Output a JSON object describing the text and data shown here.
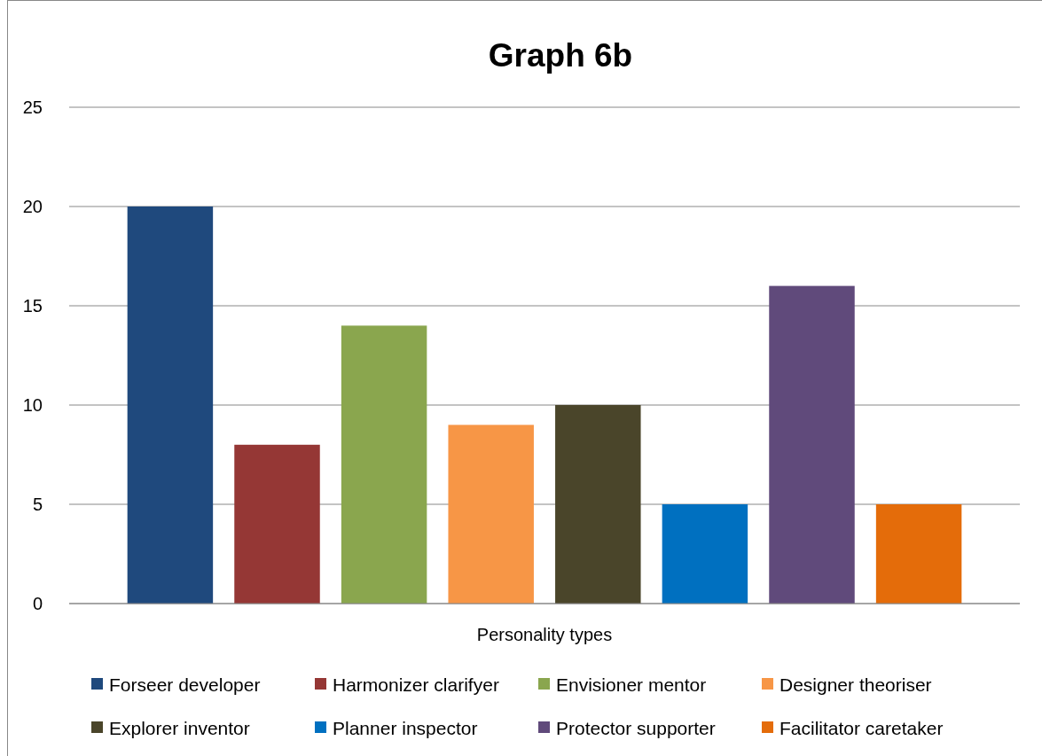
{
  "chart_data": {
    "type": "bar",
    "title": "Graph 6b",
    "categories": [
      "Personality types"
    ],
    "series": [
      {
        "name": "Forseer developer",
        "color": "#1f497d",
        "values": [
          20
        ]
      },
      {
        "name": "Harmonizer clarifyer",
        "color": "#953735",
        "values": [
          8
        ]
      },
      {
        "name": "Envisioner mentor",
        "color": "#8aa64e",
        "values": [
          14
        ]
      },
      {
        "name": "Designer theoriser",
        "color": "#f79646",
        "values": [
          9
        ]
      },
      {
        "name": "Explorer inventor",
        "color": "#4a452a",
        "values": [
          10
        ]
      },
      {
        "name": "Planner inspector",
        "color": "#0070c0",
        "values": [
          5
        ]
      },
      {
        "name": "Protector supporter",
        "color": "#604a7b",
        "values": [
          16
        ]
      },
      {
        "name": "Facilitator caretaker",
        "color": "#e46c0a",
        "values": [
          5
        ]
      }
    ],
    "ylim": [
      0,
      25
    ],
    "yticks": [
      0,
      5,
      10,
      15,
      20,
      25
    ],
    "grid": "y",
    "legend": "bottom"
  }
}
